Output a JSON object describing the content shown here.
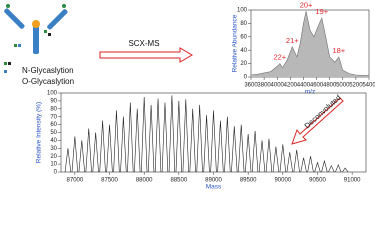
{
  "labels": {
    "n_glyc": "N-Glycaslytion",
    "o_glyc": "O-Glycaslytion",
    "scx_ms": "SCX-MS",
    "deconvoluted": "Deconvoluted"
  },
  "chart_data": [
    {
      "type": "line",
      "color": "#6e6e6e",
      "x_label": "m/z",
      "y_label": "Relative Abundance",
      "x": [
        3600,
        3700,
        3800,
        3900,
        3950,
        4000,
        4040,
        4080,
        4150,
        4230,
        4300,
        4350,
        4400,
        4440,
        4500,
        4560,
        4620,
        4680,
        4740,
        4800,
        4880,
        4940,
        5000,
        5100,
        5200,
        5400
      ],
      "values": [
        3,
        4,
        6,
        8,
        12,
        16,
        20,
        14,
        25,
        45,
        30,
        50,
        80,
        98,
        70,
        60,
        75,
        88,
        60,
        30,
        22,
        30,
        10,
        5,
        3,
        2
      ],
      "peak_labels": [
        {
          "label": "22+",
          "x": 4040
        },
        {
          "label": "21+",
          "x": 4230
        },
        {
          "label": "20+",
          "x": 4440
        },
        {
          "label": "19+",
          "x": 4680
        },
        {
          "label": "18+",
          "x": 4940
        }
      ],
      "xlim": [
        3600,
        5400
      ],
      "xticks": [
        3600,
        3800,
        4000,
        4200,
        4400,
        4600,
        4800,
        5000,
        5200,
        5400
      ],
      "ylim": [
        0,
        100
      ],
      "yticks": [
        0,
        20,
        40,
        60,
        80,
        100
      ]
    },
    {
      "type": "stem",
      "color": "#222222",
      "x_label": "Mass",
      "y_label": "Relative Intensity (%)",
      "x": [
        86900,
        87000,
        87100,
        87200,
        87300,
        87400,
        87500,
        87600,
        87700,
        87800,
        87900,
        88000,
        88100,
        88200,
        88300,
        88400,
        88500,
        88600,
        88700,
        88800,
        88900,
        89000,
        89100,
        89200,
        89300,
        89400,
        89500,
        89600,
        89700,
        89800,
        89900,
        90000,
        90100,
        90200,
        90300,
        90400,
        90500,
        90600,
        90700,
        90800,
        90900
      ],
      "values": [
        30,
        45,
        40,
        55,
        50,
        65,
        60,
        78,
        70,
        88,
        80,
        95,
        85,
        93,
        88,
        97,
        90,
        92,
        80,
        85,
        72,
        78,
        65,
        70,
        58,
        60,
        48,
        52,
        40,
        42,
        32,
        35,
        25,
        28,
        18,
        20,
        12,
        14,
        8,
        9,
        5
      ],
      "xlim": [
        86800,
        91200
      ],
      "xticks": [
        87000,
        87500,
        88000,
        88500,
        89000,
        89500,
        90000,
        90500,
        91000
      ],
      "ylim": [
        0,
        100
      ],
      "yticks": [
        0,
        10,
        20,
        30,
        40,
        50,
        60,
        70,
        80,
        90,
        100
      ]
    }
  ]
}
